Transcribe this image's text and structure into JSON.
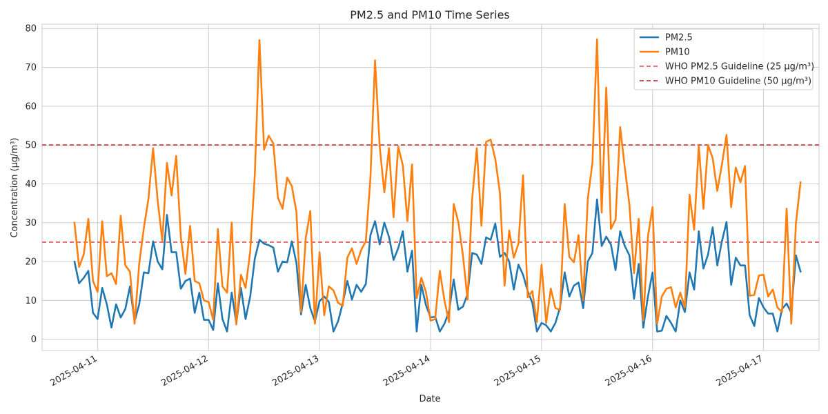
{
  "chart_data": {
    "type": "line",
    "title": "PM2.5 and PM10 Time Series",
    "xlabel": "Date",
    "ylabel": "Concentration (μg/m³)",
    "ylim": [
      -2.9,
      81.1
    ],
    "xlim": [
      "2025-04-10T12:00",
      "2025-04-17T12:00"
    ],
    "x_start": "2025-04-10T19:00",
    "x_step_hours": 1,
    "x_ticks": [
      "2025-04-11",
      "2025-04-12",
      "2025-04-13",
      "2025-04-14",
      "2025-04-15",
      "2025-04-16",
      "2025-04-17"
    ],
    "y_ticks": [
      0,
      10,
      20,
      30,
      40,
      50,
      60,
      70,
      80
    ],
    "grid": true,
    "legend_position": "top-right",
    "series": [
      {
        "name": "PM2.5",
        "color": "#1f77b4",
        "style": "solid",
        "values": [
          20.0,
          14.4,
          15.8,
          17.6,
          6.8,
          5.2,
          13.2,
          9.0,
          3.0,
          9.0,
          5.6,
          7.8,
          13.6,
          4.6,
          9.0,
          17.2,
          17.0,
          25.2,
          20.0,
          18.0,
          32.0,
          22.4,
          22.4,
          13.0,
          15.0,
          15.6,
          6.8,
          12.0,
          5.0,
          5.0,
          2.4,
          14.4,
          5.2,
          2.0,
          12.0,
          4.2,
          13.2,
          5.2,
          11.0,
          20.8,
          25.6,
          24.6,
          24.2,
          23.6,
          17.4,
          20.0,
          19.8,
          25.2,
          19.6,
          6.4,
          14.0,
          8.0,
          4.6,
          9.8,
          11.0,
          9.6,
          2.0,
          4.6,
          9.2,
          15.0,
          10.2,
          14.0,
          12.2,
          14.2,
          26.8,
          30.4,
          24.4,
          30.0,
          26.4,
          20.4,
          23.4,
          27.8,
          17.4,
          22.8,
          2.0,
          14.0,
          8.8,
          5.6,
          5.8,
          2.0,
          4.0,
          7.2,
          15.4,
          7.6,
          8.4,
          11.6,
          22.2,
          21.8,
          19.4,
          26.2,
          25.6,
          29.8,
          21.2,
          22.2,
          20.0,
          12.8,
          19.2,
          16.6,
          12.4,
          9.4,
          2.0,
          4.2,
          3.6,
          2.0,
          4.2,
          8.2,
          17.2,
          11.0,
          13.8,
          14.6,
          8.0,
          20.0,
          22.2,
          36.0,
          24.0,
          26.4,
          24.4,
          17.8,
          27.8,
          24.0,
          21.6,
          10.4,
          19.4,
          3.0,
          11.0,
          17.2,
          2.0,
          2.2,
          6.0,
          4.2,
          2.0,
          10.0,
          7.0,
          17.2,
          12.8,
          27.8,
          18.2,
          21.8,
          28.8,
          19.0,
          25.2,
          30.2,
          14.0,
          21.0,
          19.0,
          19.0,
          6.2,
          3.4,
          10.6,
          8.2,
          6.6,
          6.6,
          2.0,
          7.8,
          9.2,
          6.8,
          21.6,
          17.4
        ]
      },
      {
        "name": "PM10",
        "color": "#ff7f0e",
        "style": "solid",
        "values": [
          30.0,
          18.6,
          21.8,
          31.0,
          15.0,
          12.2,
          30.4,
          16.2,
          17.0,
          14.2,
          31.8,
          19.0,
          17.4,
          4.0,
          19.4,
          28.6,
          36.2,
          49.2,
          35.6,
          25.4,
          45.4,
          37.0,
          47.2,
          26.4,
          16.8,
          29.2,
          15.0,
          14.4,
          10.0,
          9.6,
          5.0,
          28.4,
          13.6,
          12.0,
          30.0,
          3.8,
          16.6,
          13.2,
          22.6,
          42.4,
          77.0,
          48.8,
          52.4,
          50.4,
          36.4,
          33.6,
          41.6,
          39.4,
          32.8,
          7.0,
          26.0,
          33.0,
          4.0,
          22.4,
          6.2,
          13.6,
          12.6,
          9.4,
          8.6,
          21.0,
          23.4,
          19.4,
          23.0,
          25.2,
          41.6,
          71.8,
          49.6,
          37.8,
          49.2,
          31.4,
          49.6,
          44.8,
          30.4,
          45.0,
          10.6,
          15.8,
          12.2,
          4.8,
          5.2,
          17.6,
          10.0,
          4.4,
          34.8,
          30.2,
          21.6,
          10.2,
          36.2,
          49.2,
          29.2,
          50.8,
          51.4,
          46.4,
          37.6,
          13.8,
          28.0,
          21.0,
          24.6,
          42.2,
          10.8,
          12.4,
          4.4,
          19.2,
          4.2,
          13.0,
          8.0,
          7.6,
          34.8,
          21.2,
          19.8,
          26.8,
          10.0,
          36.2,
          45.4,
          77.2,
          32.6,
          64.8,
          28.4,
          30.8,
          54.6,
          44.2,
          34.6,
          17.0,
          31.0,
          4.8,
          26.4,
          34.0,
          4.0,
          11.0,
          13.0,
          13.4,
          8.2,
          12.0,
          8.2,
          37.2,
          28.2,
          49.8,
          33.6,
          50.0,
          46.6,
          38.2,
          45.0,
          52.6,
          34.0,
          44.2,
          40.4,
          44.6,
          11.2,
          11.4,
          16.4,
          16.6,
          11.0,
          12.8,
          8.2,
          7.0,
          33.6,
          4.0,
          29.8,
          40.4
        ]
      },
      {
        "name": "WHO PM2.5 Guideline (25 μg/m³)",
        "color": "#ef4444",
        "style": "dashed",
        "constant": 25
      },
      {
        "name": "WHO PM10 Guideline (50 μg/m³)",
        "color": "#b91c1c",
        "style": "dashed",
        "constant": 50
      }
    ]
  }
}
